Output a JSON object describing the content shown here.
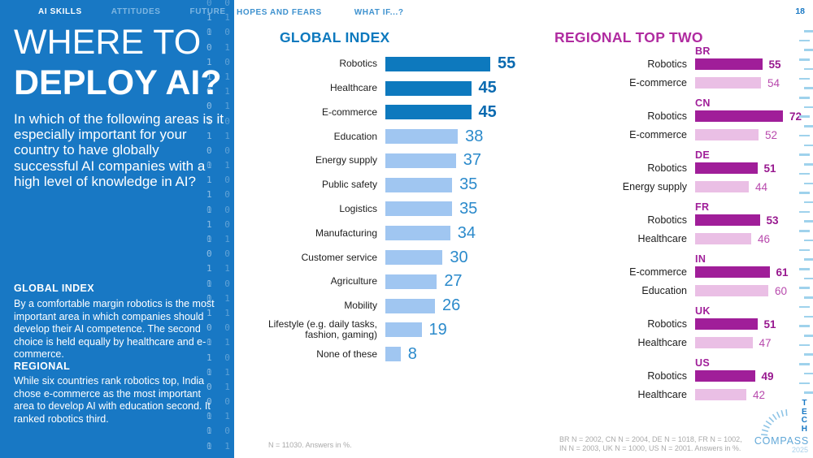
{
  "sidebar": {
    "nav": [
      {
        "label": "AI SKILLS",
        "active": true
      },
      {
        "label": "ATTITUDES",
        "active": false
      },
      {
        "label": "FUTURE",
        "active": false
      }
    ],
    "title_line1": "WHERE TO",
    "title_line2": "DEPLOY AI?",
    "question": "In which of the following areas is it especially important for your country to have globally successful AI companies with a high level of knowledge in AI?",
    "global_index_heading": "GLOBAL INDEX",
    "global_index_text": "By a comfortable margin robotics is the most important area in which companies should develop their AI competence. The second choice is held equally by healthcare and e-commerce.",
    "regional_heading": "REGIONAL",
    "regional_text": "While six countries rank robotics top, India chose e-commerce as the most important area to develop AI with education second. It ranked robotics third.",
    "binary_rows": [
      "001",
      "110",
      "100",
      "011",
      "101",
      "110",
      "010",
      "011",
      "101",
      "110",
      "001",
      "011",
      "101",
      "100",
      "101",
      "101",
      "010",
      "001",
      "110",
      "101",
      "011",
      "110",
      "001",
      "011",
      "101",
      "010",
      "010",
      "001",
      "010",
      "100",
      "110"
    ]
  },
  "top_nav": {
    "items": [
      {
        "label": "HOPES AND FEARS"
      },
      {
        "label": "WHAT IF...?"
      }
    ],
    "page_number": "18"
  },
  "chart_data": [
    {
      "type": "bar",
      "orientation": "horizontal",
      "title": "GLOBAL INDEX",
      "categories": [
        "Robotics",
        "Healthcare",
        "E-commerce",
        "Education",
        "Energy supply",
        "Public safety",
        "Logistics",
        "Manufacturing",
        "Customer service",
        "Agriculture",
        "Mobility",
        "Lifestyle (e.g. daily tasks,\nfashion, gaming)",
        "None of these"
      ],
      "values": [
        55,
        45,
        45,
        38,
        37,
        35,
        35,
        34,
        30,
        27,
        26,
        19,
        8
      ],
      "highlight_top": 3,
      "xlim": [
        0,
        60
      ],
      "value_unit": "%",
      "note": "N = 11030. Answers in %.",
      "colors": {
        "primary": "#0d79be",
        "secondary": "#a0c6f1"
      }
    },
    {
      "type": "bar",
      "orientation": "horizontal",
      "title": "REGIONAL TOP TWO",
      "groups": [
        {
          "country": "BR",
          "rows": [
            {
              "label": "Robotics",
              "value": 55
            },
            {
              "label": "E-commerce",
              "value": 54
            }
          ]
        },
        {
          "country": "CN",
          "rows": [
            {
              "label": "Robotics",
              "value": 72
            },
            {
              "label": "E-commerce",
              "value": 52
            }
          ]
        },
        {
          "country": "DE",
          "rows": [
            {
              "label": "Robotics",
              "value": 51
            },
            {
              "label": "Energy supply",
              "value": 44
            }
          ]
        },
        {
          "country": "FR",
          "rows": [
            {
              "label": "Robotics",
              "value": 53
            },
            {
              "label": "Healthcare",
              "value": 46
            }
          ]
        },
        {
          "country": "IN",
          "rows": [
            {
              "label": "E-commerce",
              "value": 61
            },
            {
              "label": "Education",
              "value": 60
            }
          ]
        },
        {
          "country": "UK",
          "rows": [
            {
              "label": "Robotics",
              "value": 51
            },
            {
              "label": "Healthcare",
              "value": 47
            }
          ]
        },
        {
          "country": "US",
          "rows": [
            {
              "label": "Robotics",
              "value": 49
            },
            {
              "label": "Healthcare",
              "value": 42
            }
          ]
        }
      ],
      "xlim": [
        0,
        80
      ],
      "value_unit": "%",
      "note": "BR N = 2002, CN N = 2004, DE N = 1018, FR N = 1002,\nIN N = 2003, UK N = 1000, US N = 2001. Answers in %.",
      "colors": {
        "primary": "#a01e99",
        "secondary": "#eabfe5"
      }
    }
  ],
  "logo": {
    "tech": "T\nE\nC\nH",
    "compass": "COMPASS",
    "year": "2025"
  }
}
